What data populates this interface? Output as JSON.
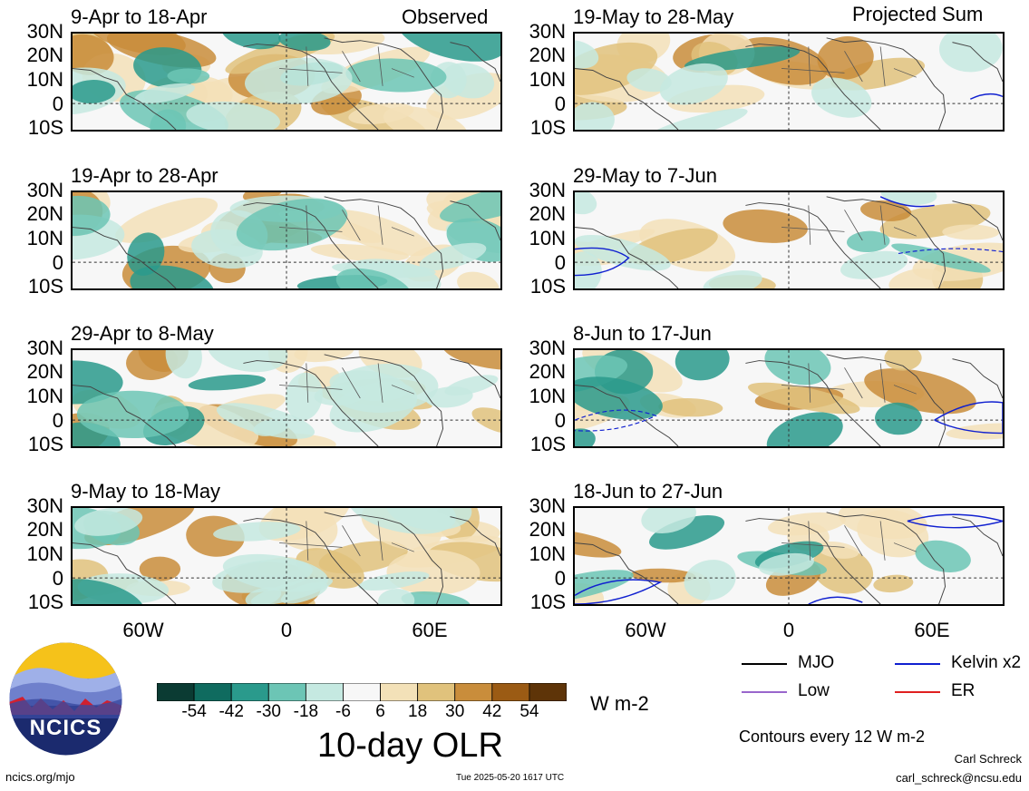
{
  "observed_label": "Observed",
  "projected_label": "Projected Sum",
  "left_panels": [
    {
      "title": "9-Apr to 18-Apr"
    },
    {
      "title": "19-Apr to 28-Apr"
    },
    {
      "title": "29-Apr to 8-May"
    },
    {
      "title": "9-May to 18-May"
    }
  ],
  "right_panels": [
    {
      "title": "19-May to 28-May"
    },
    {
      "title": "29-May to 7-Jun"
    },
    {
      "title": "8-Jun to 17-Jun"
    },
    {
      "title": "18-Jun to 27-Jun"
    }
  ],
  "lat_ticks": [
    "30N",
    "20N",
    "10N",
    "0",
    "10S"
  ],
  "lon_ticks": [
    "60W",
    "0",
    "60E"
  ],
  "colorbar": {
    "ticks": [
      "-54",
      "-42",
      "-30",
      "-18",
      "-6",
      "6",
      "18",
      "30",
      "42",
      "54"
    ],
    "units": "W m-2",
    "colors": [
      "#0b3b33",
      "#0f6b5f",
      "#2a9a8c",
      "#6cc5b5",
      "#c5e9e1",
      "#f7f7f7",
      "#f3e1b8",
      "#e0c27c",
      "#c98d3b",
      "#9b5b14",
      "#5e3408"
    ]
  },
  "main_title": "10-day OLR",
  "legend": {
    "items": [
      {
        "label": "MJO",
        "color": "#000000"
      },
      {
        "label": "Kelvin x2",
        "color": "#1020d0"
      },
      {
        "label": "Low",
        "color": "#9966cc"
      },
      {
        "label": "ER",
        "color": "#e02020"
      }
    ],
    "contours_note": "Contours every 12 W m-2"
  },
  "logo_text": "NCICS",
  "footer": {
    "left": "ncics.org/mjo",
    "center": "Tue 2025-05-20 1617 UTC",
    "author": "Carl Schreck",
    "email": "carl_schreck@ncsu.edu"
  }
}
